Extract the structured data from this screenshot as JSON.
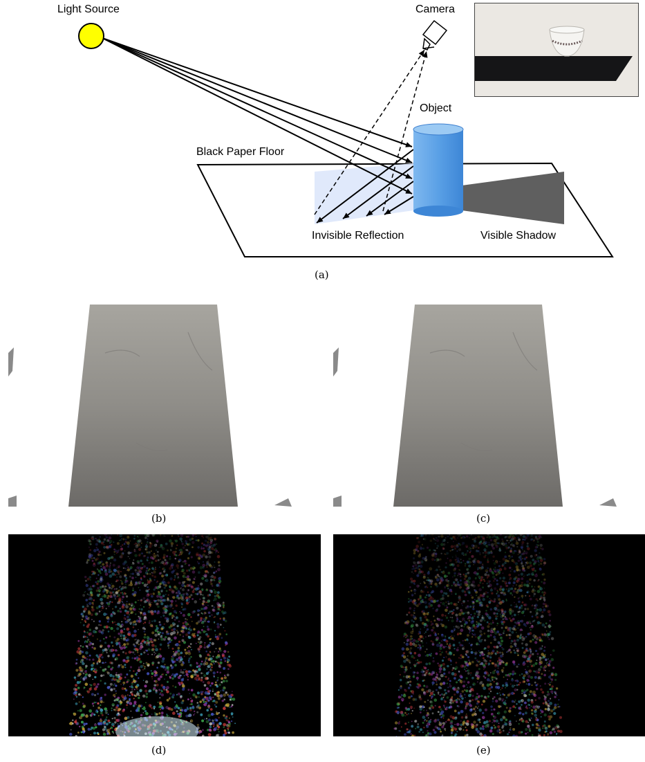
{
  "diagram": {
    "light_source_label": "Light Source",
    "camera_label": "Camera",
    "object_label": "Object",
    "floor_label": "Black Paper Floor",
    "reflection_label": "Invisible Reflection",
    "shadow_label": "Visible Shadow"
  },
  "captions": {
    "a": "(a)",
    "b": "(b)",
    "c": "(c)",
    "d": "(d)",
    "e": "(e)"
  }
}
